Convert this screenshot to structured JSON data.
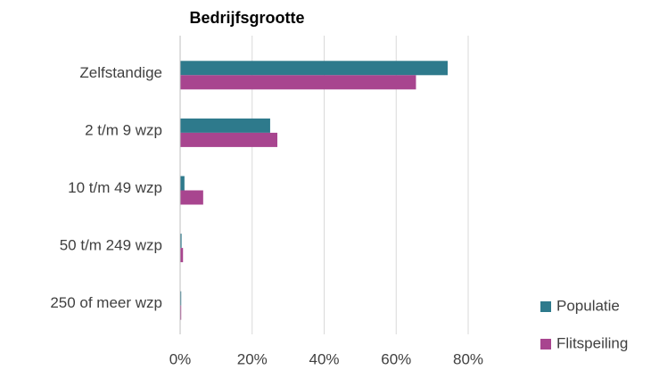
{
  "chart_data": {
    "type": "hbar",
    "title": "Bedrijfsgrootte",
    "categories": [
      "Zelfstandige",
      "2 t/m 9 wzp",
      "10 t/m 49 wzp",
      "50 t/m 249 wzp",
      "250 of meer wzp"
    ],
    "series": [
      {
        "name": "Populatie",
        "color": "#2e7a8c",
        "values": [
          74.3,
          25,
          1.2,
          0.4,
          0.3
        ]
      },
      {
        "name": "Flitspeiling",
        "color": "#a8458f",
        "values": [
          65.5,
          27,
          6.4,
          0.8,
          0.3
        ]
      }
    ],
    "xlim": [
      0,
      80
    ],
    "xticks": [
      {
        "value": 0,
        "label": "0%"
      },
      {
        "value": 20,
        "label": "20%"
      },
      {
        "value": 40,
        "label": "40%"
      },
      {
        "value": 60,
        "label": "60%"
      },
      {
        "value": 80,
        "label": "80%"
      }
    ],
    "grid": true,
    "legend": "bottom-right"
  }
}
